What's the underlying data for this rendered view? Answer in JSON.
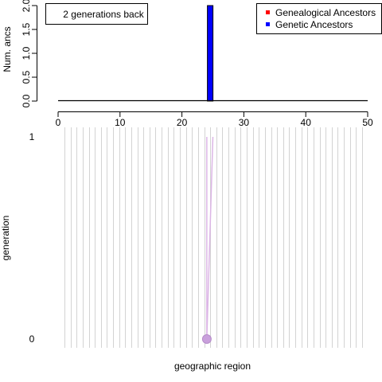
{
  "chart_data": [
    {
      "type": "bar",
      "ylabel": "Num. ancs",
      "xlim": [
        0,
        50
      ],
      "ylim": [
        0,
        2.0
      ],
      "x_ticks": [
        "0",
        "10",
        "20",
        "30",
        "40",
        "50"
      ],
      "y_ticks": [
        "0.0",
        "0.5",
        "1.0",
        "1.5",
        "2.0"
      ],
      "annotation": "2 generations back",
      "legend": {
        "position": "top-right",
        "entries": [
          {
            "label": "Genealogical Ancestors",
            "color": "#ff0000"
          },
          {
            "label": "Genetic Ancestors",
            "color": "#0000ff"
          }
        ]
      },
      "series": [
        {
          "name": "Genealogical Ancestors",
          "color": "#ff0000",
          "points": []
        },
        {
          "name": "Genetic Ancestors",
          "color": "#0000ff",
          "points": [
            {
              "x": 24.5,
              "y": 2
            }
          ]
        }
      ]
    },
    {
      "type": "scatter",
      "xlabel": "geographic region",
      "ylabel": "generation",
      "y_ticks": [
        "0",
        "1"
      ],
      "regions": 50,
      "grid": true,
      "points": [
        {
          "region": 24,
          "generation": 0,
          "color": "#c9a0dc"
        }
      ],
      "lineages": [
        {
          "from": {
            "region": 24,
            "generation": 0
          },
          "to": {
            "region": 24,
            "generation": 1
          }
        },
        {
          "from": {
            "region": 24,
            "generation": 0
          },
          "to": {
            "region": 25,
            "generation": 1
          }
        }
      ]
    }
  ]
}
